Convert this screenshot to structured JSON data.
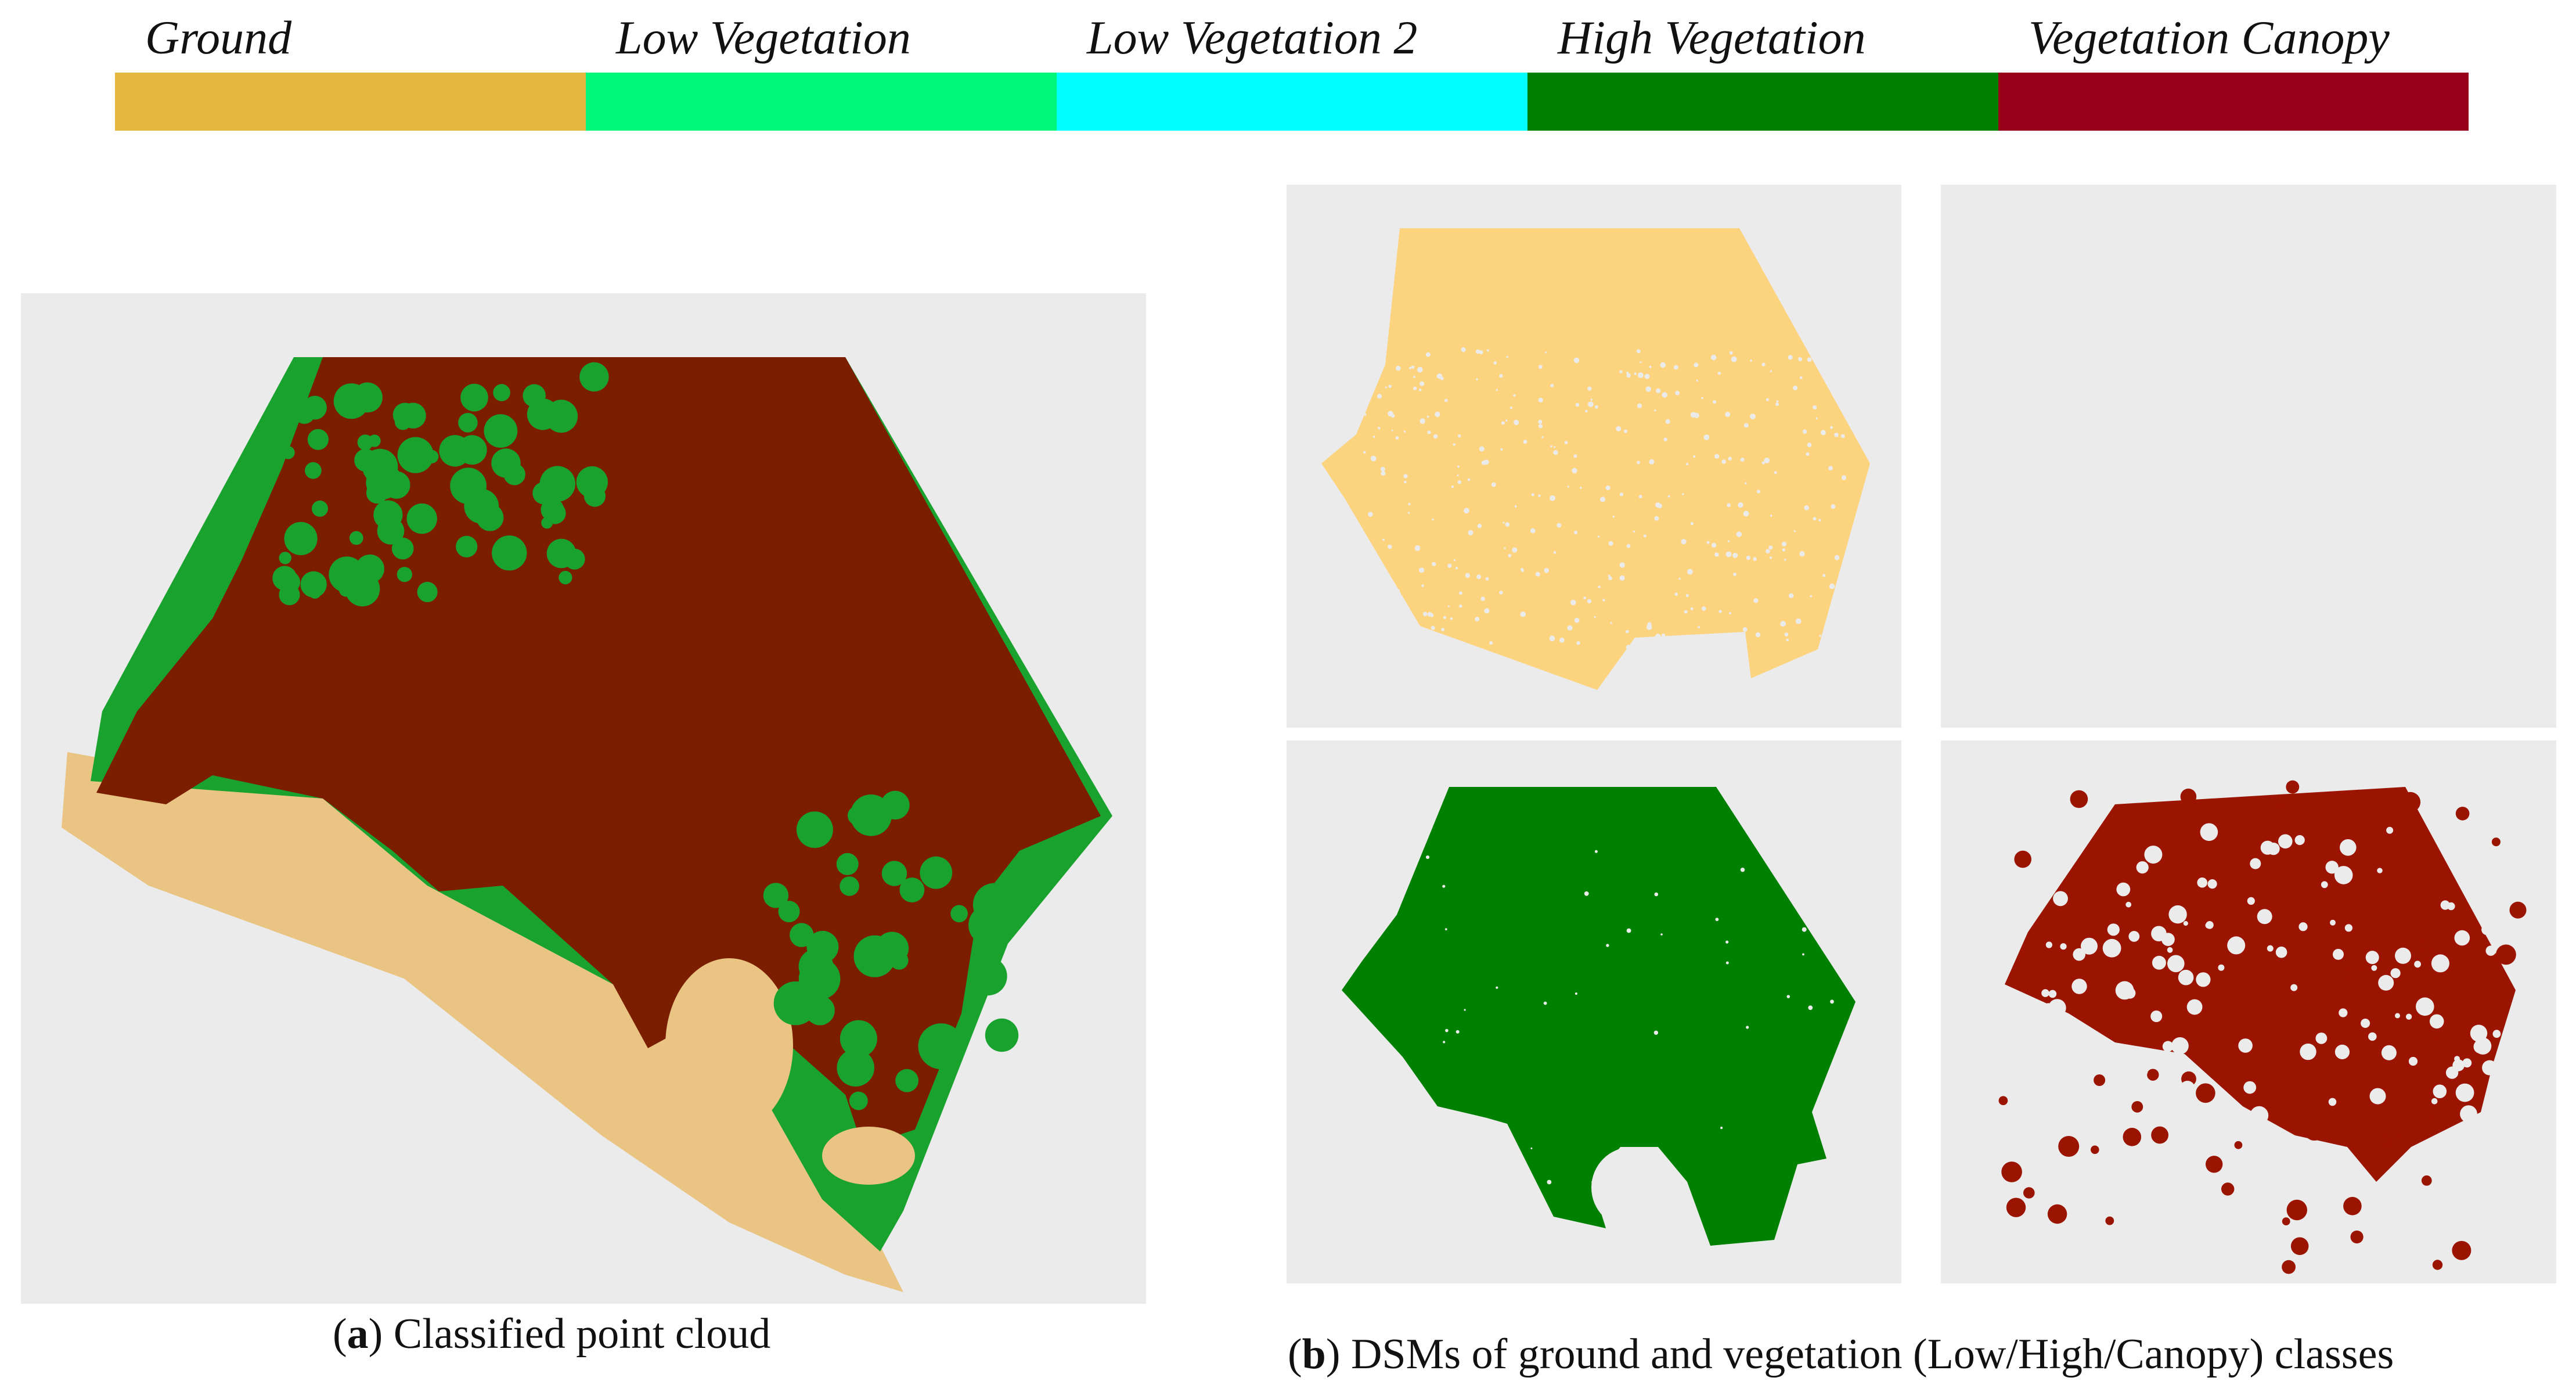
{
  "legend": {
    "items": [
      {
        "label": "Ground",
        "color": "#e6b83e"
      },
      {
        "label": "Low Vegetation",
        "color": "#00f77a"
      },
      {
        "label": "Low Vegetation 2",
        "color": "#00ffff"
      },
      {
        "label": "High Vegetation",
        "color": "#008000"
      },
      {
        "label": "Vegetation Canopy",
        "color": "#960018"
      }
    ]
  },
  "panels": {
    "a": {
      "caption_letter": "a",
      "caption_text": "Classified point cloud",
      "colors": {
        "canopy": "#7b1e00",
        "vegetation": "#19a22e",
        "ground": "#e9c483"
      }
    },
    "b": {
      "caption_letter": "b",
      "caption_text": "DSMs of ground and vegetation (Low/High/Canopy) classes",
      "colors": {
        "ground": "#fcd47f",
        "high": "#008000",
        "canopy": "#9b1400"
      }
    }
  }
}
